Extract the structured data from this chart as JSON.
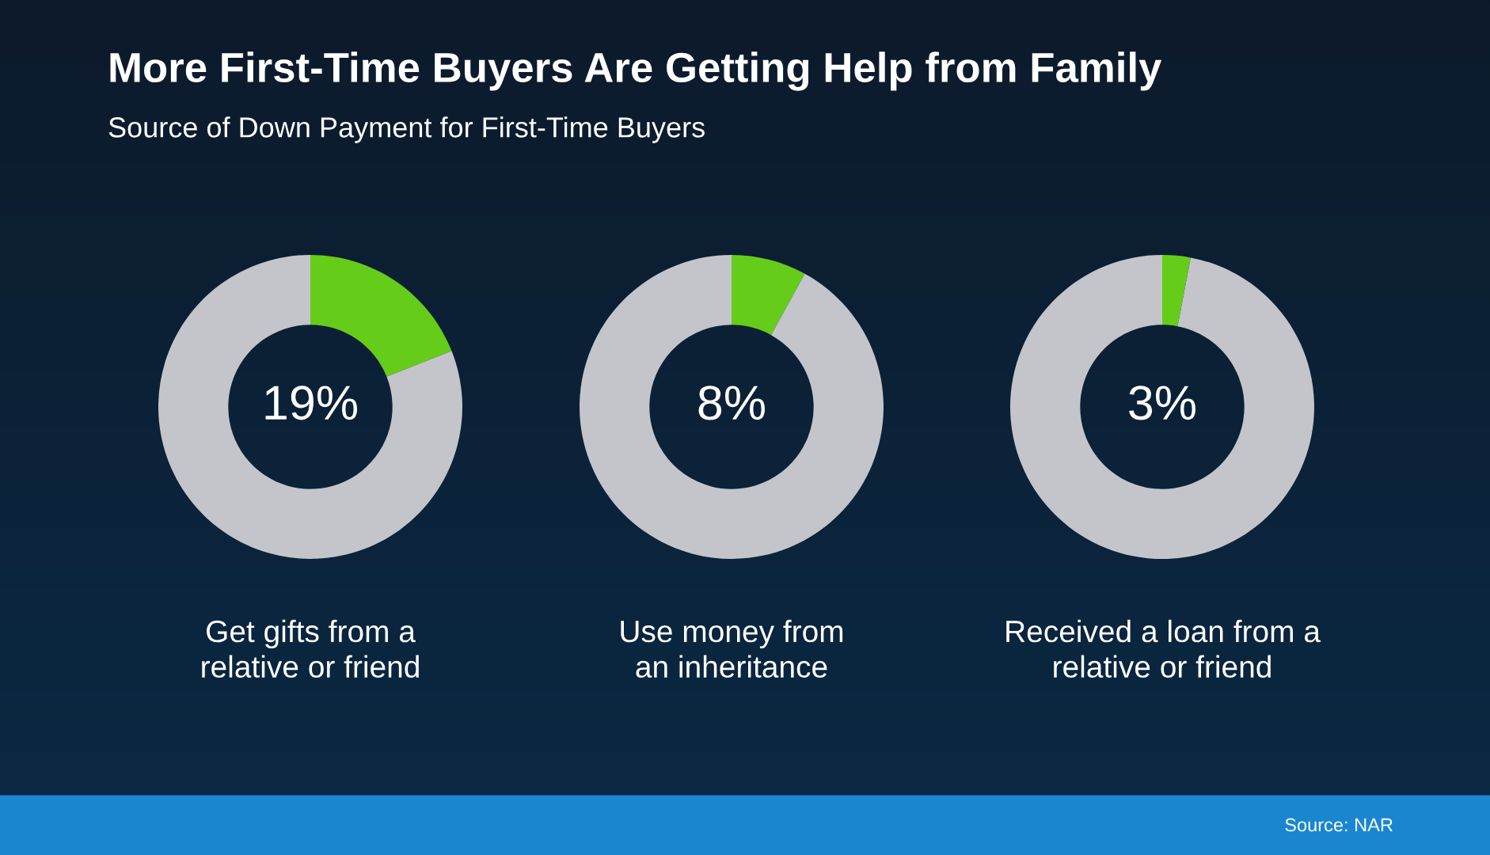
{
  "chart_data": [
    {
      "type": "donut",
      "title": "More First-Time Buyers Are Getting Help from Family",
      "subtitle": "Source of Down Payment for First-Time Buyers",
      "xlabel": "Get gifts from a\nrelative or friend",
      "categories": [
        null,
        null
      ],
      "values": [
        19,
        81
      ],
      "colors": [
        "#66cc1a",
        "#c3c5cb"
      ],
      "value_labels": [
        "19%",
        null
      ]
    },
    {
      "type": "donut",
      "xlabel": "Use money from\nan inheritance",
      "categories": [
        null,
        null
      ],
      "values": [
        8,
        92
      ],
      "colors": [
        "#66cc1a",
        "#c3c5cb"
      ],
      "value_labels": [
        "8%",
        null
      ]
    },
    {
      "type": "donut",
      "xlabel": "Received a loan from a\nrelative or friend",
      "categories": [
        null,
        null
      ],
      "values": [
        3,
        97
      ],
      "colors": [
        "#66cc1a",
        "#c3c5cb"
      ],
      "value_labels": [
        "3%",
        null
      ],
      "annotations": [
        "Source: NAR"
      ]
    }
  ]
}
